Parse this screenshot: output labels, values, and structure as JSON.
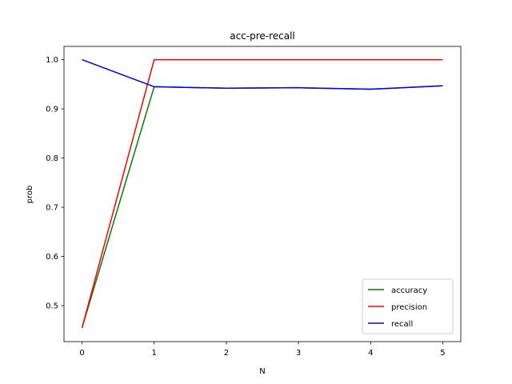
{
  "chart_data": {
    "type": "line",
    "title": "acc-pre-recall",
    "xlabel": "N",
    "ylabel": "prob",
    "x": [
      0,
      1,
      2,
      3,
      4,
      5
    ],
    "xlim": [
      -0.25,
      5.25
    ],
    "ylim": [
      0.427,
      1.027
    ],
    "xticks": [
      "0",
      "1",
      "2",
      "3",
      "4",
      "5"
    ],
    "yticks": [
      "0.5",
      "0.6",
      "0.7",
      "0.8",
      "0.9",
      "1.0"
    ],
    "grid": false,
    "legend_position": "bottom-right",
    "series": [
      {
        "name": "accuracy",
        "color": "#008000",
        "values": [
          0.455,
          0.945,
          0.942,
          0.943,
          0.94,
          0.947
        ]
      },
      {
        "name": "precision",
        "color": "#ff0000",
        "values": [
          0.455,
          1.0,
          1.0,
          1.0,
          1.0,
          1.0
        ]
      },
      {
        "name": "recall",
        "color": "#0000ff",
        "values": [
          1.0,
          0.945,
          0.942,
          0.943,
          0.94,
          0.947
        ]
      }
    ]
  }
}
